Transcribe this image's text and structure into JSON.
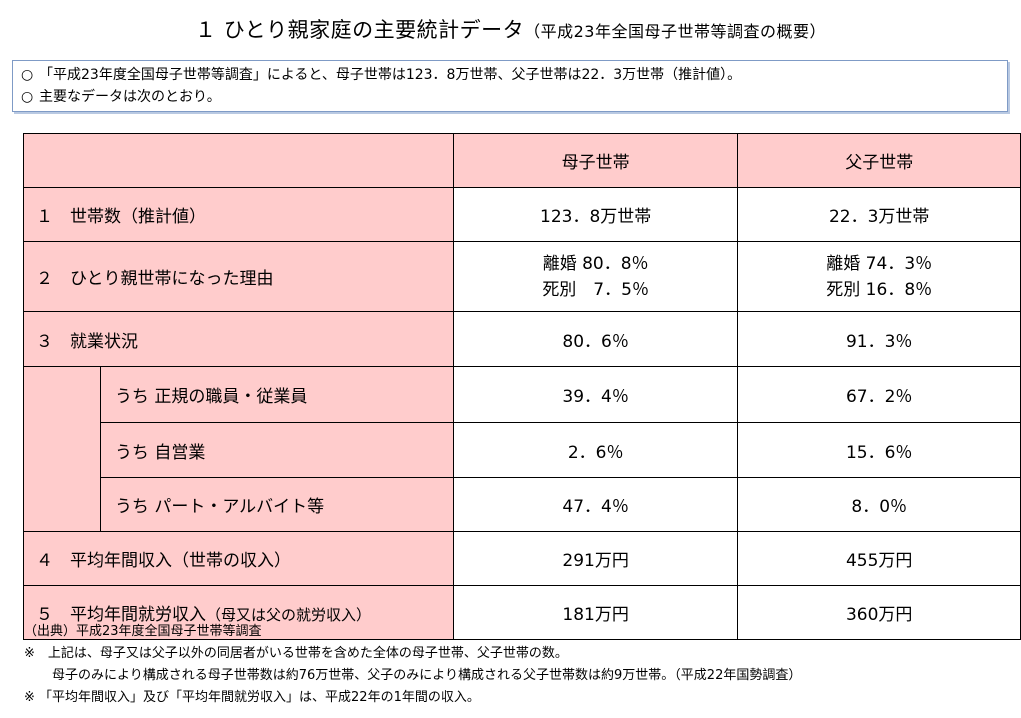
{
  "title": {
    "main": "１ ひとり親家庭の主要統計データ",
    "sub": "（平成23年全国母子世帯等調査の概要）"
  },
  "summary": {
    "marker": "○",
    "lines": [
      "「平成23年度全国母子世帯等調査」によると、母子世帯は123．8万世帯、父子世帯は22．3万世帯（推計値）。",
      "主要なデータは次のとおり。"
    ]
  },
  "table": {
    "headers": [
      "母子世帯",
      "父子世帯"
    ],
    "rows": [
      {
        "label": "１　世帯数（推計値）",
        "mother": "123．8万世帯",
        "father": "22．3万世帯"
      },
      {
        "label": "２　ひとり親世帯になった理由",
        "mother": [
          "離婚 80．8％",
          "死別　7．5％"
        ],
        "father": [
          "離婚 74．3％",
          "死別 16．8％"
        ]
      },
      {
        "label": "３　就業状況",
        "mother": "80．6％",
        "father": "91．3％"
      },
      {
        "label": "うち 正規の職員・従業員",
        "mother": "39．4％",
        "father": "67．2％"
      },
      {
        "label": "うち 自営業",
        "mother": "2．6％",
        "father": "15．6％"
      },
      {
        "label": "うち パート・アルバイト等",
        "mother": "47．4％",
        "father": "8．0％"
      },
      {
        "label": "４　平均年間収入（世帯の収入）",
        "mother": "291万円",
        "father": "455万円"
      },
      {
        "label_main": "５　平均年間就労収入",
        "label_small": "（母又は父の就労収入）",
        "mother": "181万円",
        "father": "360万円"
      }
    ]
  },
  "notes": [
    "（出典）平成23年度全国母子世帯等調査",
    "※　上記は、母子又は父子以外の同居者がいる世帯を含めた全体の母子世帯、父子世帯の数。",
    "母子のみにより構成される母子世帯数は約76万世帯、父子のみにより構成される父子世帯数は約9万世帯。（平成22年国勢調査）",
    "※ 「平均年間収入」及び「平均年間就労収入」は、平成22年の1年間の収入。"
  ]
}
